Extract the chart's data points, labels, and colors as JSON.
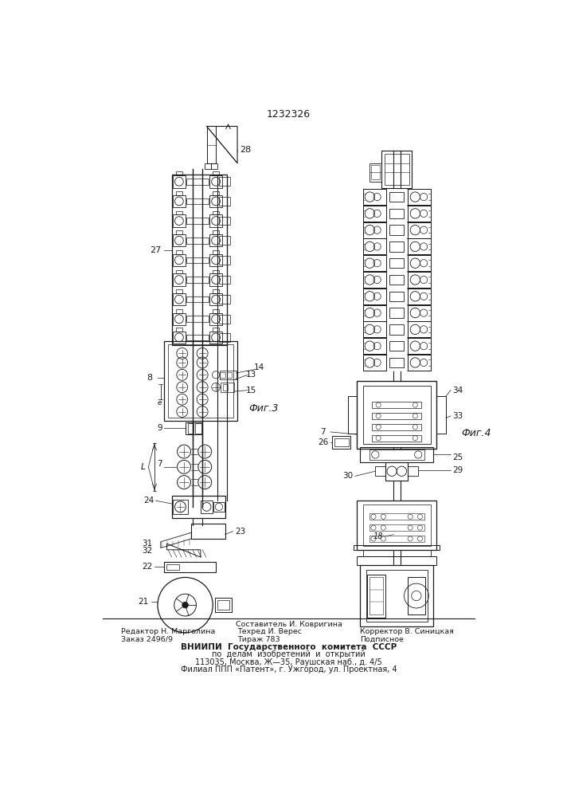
{
  "patent_number": "1232326",
  "fig3_label": "Фиг.3",
  "fig4_label": "Фиг.4",
  "footer_line0_center": "Составитель И. Ковригина",
  "footer_line1_left": "Редактор Н. Марголина",
  "footer_line1_center": "Техред И. Верес",
  "footer_line1_right": "Корректор В. Синицкая",
  "footer_line2_left": "Заказ 2496/9",
  "footer_line2_center": "Тираж 783",
  "footer_line2_right": "Подписное",
  "footer_vniip1": "ВНИИПИ  Государственного  комитета  СССР",
  "footer_vniip2": "по  делам  изобретений  и  открытий",
  "footer_vniip3": "113035, Москва, Ж—35, Раушская наб., д. 4/5",
  "footer_vniip4": "Филиал ППП «Патент», г. Ужгород, ул. Проектная, 4",
  "bg_color": "#ffffff",
  "line_color": "#1a1a1a"
}
